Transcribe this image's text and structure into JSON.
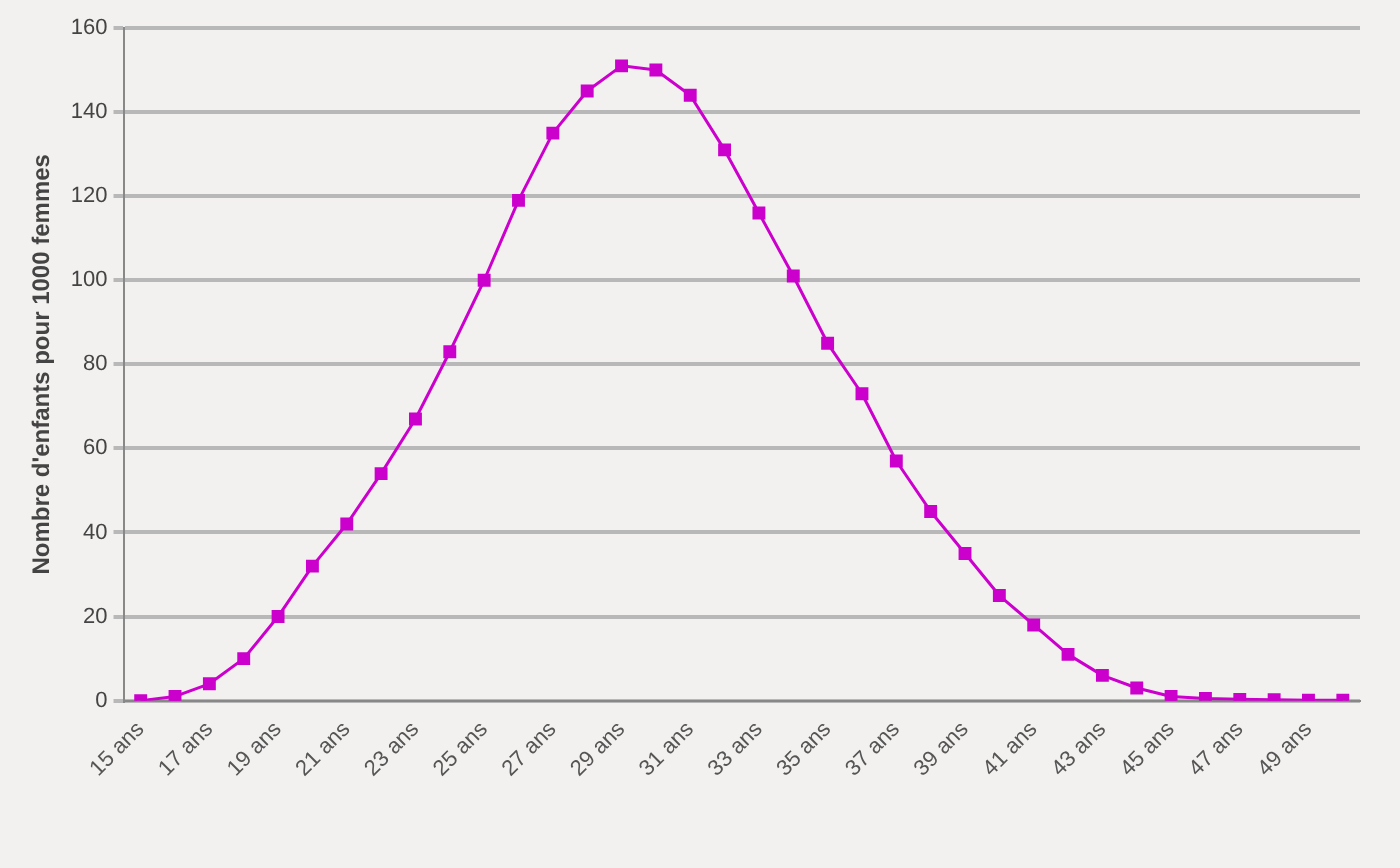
{
  "chart_data": {
    "type": "line",
    "ylabel": "Nombre d'enfants pour 1000 femmes",
    "categories": [
      "15 ans",
      null,
      "17 ans",
      null,
      "19 ans",
      null,
      "21 ans",
      null,
      "23 ans",
      null,
      "25 ans",
      null,
      "27 ans",
      null,
      "29 ans",
      null,
      "31 ans",
      null,
      "33 ans",
      null,
      "35 ans",
      null,
      "37 ans",
      null,
      "39 ans",
      null,
      "41 ans",
      null,
      "43 ans",
      null,
      "45 ans",
      null,
      "47 ans",
      null,
      "49 ans",
      null
    ],
    "series": [
      {
        "color": "#cc00cc",
        "values": [
          0,
          1,
          4,
          10,
          20,
          32,
          42,
          54,
          67,
          83,
          100,
          119,
          135,
          145,
          151,
          150,
          144,
          131,
          116,
          101,
          85,
          73,
          57,
          45,
          35,
          25,
          18,
          11,
          6,
          3,
          1,
          0.5,
          0.3,
          0.2,
          0.1,
          0.1
        ]
      }
    ],
    "ylim": [
      0,
      160
    ],
    "yticks": [
      0,
      20,
      40,
      60,
      80,
      100,
      120,
      140,
      160
    ],
    "grid": "y",
    "legend": false,
    "marker": "square",
    "line_style": "solid"
  }
}
